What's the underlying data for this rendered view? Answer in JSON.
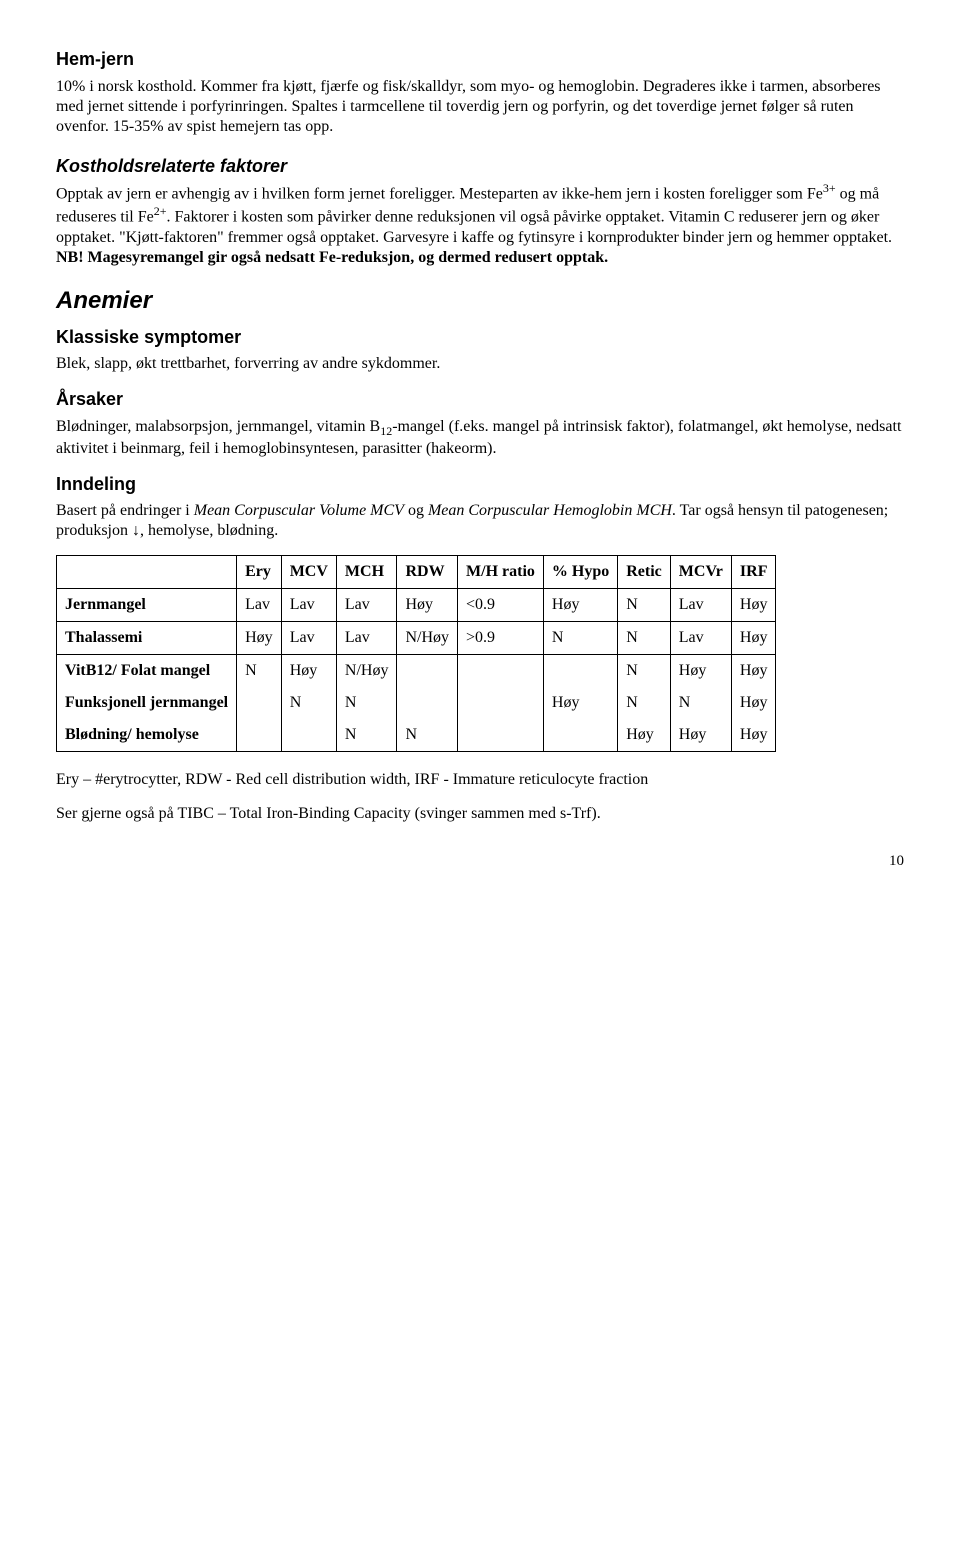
{
  "sections": {
    "hemjern": {
      "title": "Hem-jern",
      "body": "10% i norsk kosthold. Kommer fra kjøtt, fjærfe og fisk/skalldyr, som myo- og hemoglobin. Degraderes ikke i tarmen, absorberes med jernet sittende i porfyrinringen. Spaltes i tarmcellene til toverdig jern og porfyrin, og det toverdige jernet følger så ruten ovenfor. 15-35% av spist hemejern tas opp."
    },
    "kosthold": {
      "title": "Kostholdsrelaterte faktorer",
      "body_pre": "Opptak av jern er avhengig av i hvilken form jernet foreligger. Mesteparten av ikke-hem jern i kosten foreligger som Fe",
      "fe3": "3+",
      "body_mid": " og må reduseres til Fe",
      "fe2": "2+",
      "body_post": ". Faktorer i kosten som påvirker denne reduksjonen vil også påvirke opptaket. Vitamin C reduserer jern og øker opptaket. \"Kjøtt-faktoren\" fremmer også opptaket. Garvesyre i kaffe og fytinsyre i kornprodukter binder jern og hemmer opptaket. ",
      "nb": "NB! Magesyremangel gir også nedsatt Fe-reduksjon, og dermed redusert opptak."
    },
    "anemier": {
      "title": "Anemier"
    },
    "klassiske": {
      "title": "Klassiske symptomer",
      "body": "Blek, slapp, økt trettbarhet, forverring av andre sykdommer."
    },
    "arsaker": {
      "title": "Årsaker",
      "body_pre": "Blødninger, malabsorpsjon, jernmangel, vitamin B",
      "b12": "12",
      "body_post": "-mangel (f.eks. mangel på intrinsisk faktor), folatmangel, økt hemolyse, nedsatt aktivitet i beinmarg, feil i hemoglobinsyntesen, parasitter (hakeorm)."
    },
    "inndeling": {
      "title": "Inndeling",
      "body_pre": "Basert på endringer i ",
      "italic1": "Mean Corpuscular Volume MCV",
      "body_mid": " og ",
      "italic2": "Mean Corpuscular Hemoglobin MCH",
      "body_post": ". Tar også hensyn til patogenesen; produksjon ↓, hemolyse, blødning."
    },
    "footer1": "Ery – #erytrocytter, RDW - Red cell distribution width, IRF - Immature reticulocyte fraction",
    "footer2": "Ser gjerne også på TIBC – Total Iron-Binding Capacity (svinger sammen med s-Trf).",
    "pagenum": "10"
  },
  "table": {
    "headers": [
      "",
      "Ery",
      "MCV",
      "MCH",
      "RDW",
      "M/H ratio",
      "% Hypo",
      "Retic",
      "MCVr",
      "IRF"
    ],
    "rows": [
      {
        "label": "Jernmangel",
        "cells": [
          "Lav",
          "Lav",
          "Lav",
          "Høy",
          "<0.9",
          "Høy",
          "N",
          "Lav",
          "Høy"
        ]
      },
      {
        "label": "Thalassemi",
        "cells": [
          "Høy",
          "Lav",
          "Lav",
          "N/Høy",
          ">0.9",
          "N",
          "N",
          "Lav",
          "Høy"
        ]
      },
      {
        "label": "VitB12/ Folat mangel",
        "cells": [
          "N",
          "Høy",
          "N/Høy",
          "",
          "",
          "",
          "N",
          "Høy",
          "Høy"
        ],
        "group": "open"
      },
      {
        "label": "Funksjonell jernmangel",
        "cells": [
          "",
          "N",
          "N",
          "",
          "",
          "Høy",
          "N",
          "N",
          "Høy"
        ],
        "group": "mid"
      },
      {
        "label": "Blødning/ hemolyse",
        "cells": [
          "",
          "",
          "N",
          "N",
          "",
          "",
          "Høy",
          "Høy",
          "Høy"
        ],
        "group": "close"
      }
    ]
  }
}
